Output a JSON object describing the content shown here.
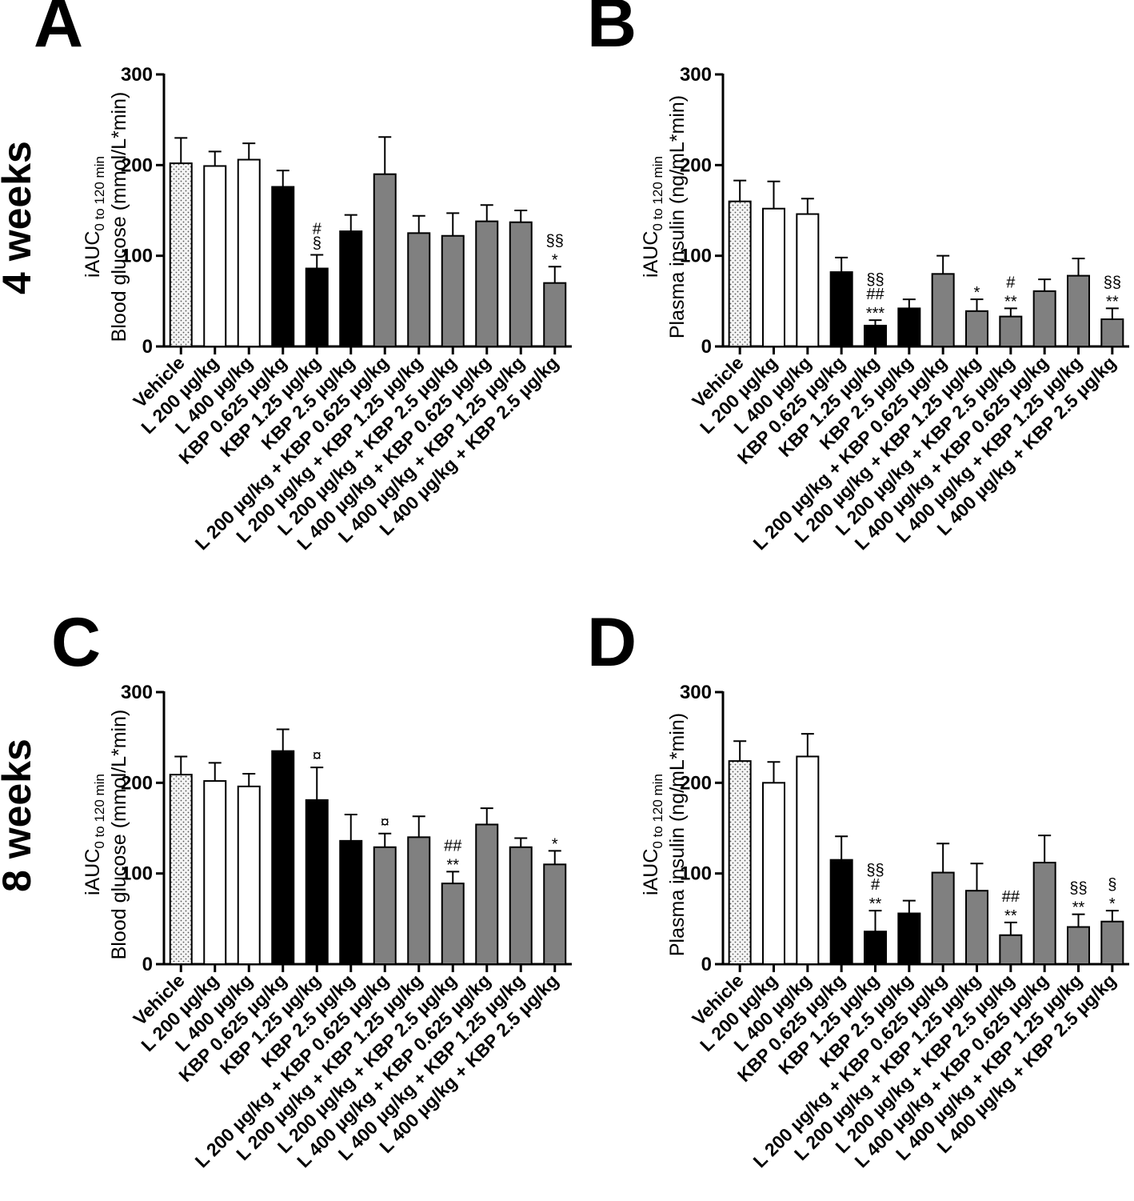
{
  "row_labels": [
    "4 weeks",
    "8 weeks"
  ],
  "colors": {
    "open": "#ffffff",
    "black": "#000000",
    "gray": "#808080",
    "vehicle": "#f2f2f2"
  },
  "chart_data": [
    {
      "type": "bar",
      "panel": "A",
      "ylabel_main": "iAUC",
      "ylabel_sub": "0 to 120 min",
      "ylabel_unit": "Blood glucose (mmol/L*min)",
      "ylim": [
        0,
        300
      ],
      "yticks": [
        "0",
        "100",
        "200",
        "300"
      ],
      "categories": [
        "Vehicle",
        "L 200 µg/kg",
        "L 400 µg/kg",
        "KBP 0.625 µg/kg",
        "KBP 1.25 µg/kg",
        "KBP 2.5 µg/kg",
        "L 200 µg/kg + KBP 0.625 µg/kg",
        "L 200 µg/kg + KBP 1.25 µg/kg",
        "L 200 µg/kg + KBP 2.5 µg/kg",
        "L 400 µg/kg + KBP 0.625 µg/kg",
        "L 400 µg/kg + KBP 1.25 µg/kg",
        "L 400 µg/kg + KBP 2.5 µg/kg"
      ],
      "fills": [
        "vehicle",
        "open",
        "open",
        "black",
        "black",
        "black",
        "gray",
        "gray",
        "gray",
        "gray",
        "gray",
        "gray"
      ],
      "values": [
        202,
        199,
        206,
        176,
        86,
        127,
        190,
        125,
        122,
        138,
        137,
        70
      ],
      "errors": [
        28,
        16,
        18,
        18,
        15,
        18,
        41,
        19,
        25,
        18,
        13,
        18
      ],
      "annotations": [
        "",
        "",
        "",
        "",
        "#\n§",
        "",
        "",
        "",
        "",
        "",
        "",
        "§§\n*"
      ]
    },
    {
      "type": "bar",
      "panel": "B",
      "ylabel_main": "iAUC",
      "ylabel_sub": "0 to 120 min",
      "ylabel_unit": "Plasma insulin (ng/mL*min)",
      "ylim": [
        0,
        300
      ],
      "yticks": [
        "0",
        "100",
        "200",
        "300"
      ],
      "categories": [
        "Vehicle",
        "L 200 µg/kg",
        "L 400 µg/kg",
        "KBP 0.625 µg/kg",
        "KBP 1.25 µg/kg",
        "KBP 2.5 µg/kg",
        "L 200 µg/kg + KBP 0.625 µg/kg",
        "L 200 µg/kg + KBP 1.25 µg/kg",
        "L 200 µg/kg + KBP 2.5 µg/kg",
        "L 400 µg/kg + KBP 0.625 µg/kg",
        "L 400 µg/kg + KBP 1.25 µg/kg",
        "L 400 µg/kg + KBP 2.5 µg/kg"
      ],
      "fills": [
        "vehicle",
        "open",
        "open",
        "black",
        "black",
        "black",
        "gray",
        "gray",
        "gray",
        "gray",
        "gray",
        "gray"
      ],
      "values": [
        160,
        152,
        146,
        82,
        23,
        42,
        80,
        39,
        33,
        61,
        78,
        30
      ],
      "errors": [
        23,
        30,
        17,
        16,
        6,
        10,
        20,
        13,
        9,
        13,
        19,
        12
      ],
      "annotations": [
        "",
        "",
        "",
        "",
        "§§\n##\n***",
        "",
        "",
        "*",
        "#\n**",
        "",
        "",
        "§§\n**"
      ]
    },
    {
      "type": "bar",
      "panel": "C",
      "ylabel_main": "iAUC",
      "ylabel_sub": "0 to 120 min",
      "ylabel_unit": "Blood glucose (mmol/L*min)",
      "ylim": [
        0,
        300
      ],
      "yticks": [
        "0",
        "100",
        "200",
        "300"
      ],
      "categories": [
        "Vehicle",
        "L 200 µg/kg",
        "L 400 µg/kg",
        "KBP 0.625 µg/kg",
        "KBP 1.25 µg/kg",
        "KBP 2.5 µg/kg",
        "L 200 µg/kg + KBP 0.625 µg/kg",
        "L 200 µg/kg + KBP 1.25 µg/kg",
        "L 200 µg/kg + KBP 2.5 µg/kg",
        "L 400 µg/kg + KBP 0.625 µg/kg",
        "L 400 µg/kg + KBP 1.25 µg/kg",
        "L 400 µg/kg + KBP 2.5 µg/kg"
      ],
      "fills": [
        "vehicle",
        "open",
        "open",
        "black",
        "black",
        "black",
        "gray",
        "gray",
        "gray",
        "gray",
        "gray",
        "gray"
      ],
      "values": [
        209,
        202,
        196,
        235,
        181,
        136,
        129,
        140,
        89,
        154,
        129,
        110
      ],
      "errors": [
        20,
        20,
        14,
        24,
        36,
        29,
        15,
        23,
        13,
        18,
        10,
        15
      ],
      "annotations": [
        "",
        "",
        "",
        "",
        "¤",
        "",
        "¤",
        "",
        "##\n**",
        "",
        "",
        "*"
      ]
    },
    {
      "type": "bar",
      "panel": "D",
      "ylabel_main": "iAUC",
      "ylabel_sub": "0 to 120 min",
      "ylabel_unit": "Plasma insulin (ng/mL*min)",
      "ylim": [
        0,
        300
      ],
      "yticks": [
        "0",
        "100",
        "200",
        "300"
      ],
      "categories": [
        "Vehicle",
        "L 200 µg/kg",
        "L 400 µg/kg",
        "KBP 0.625 µg/kg",
        "KBP 1.25 µg/kg",
        "KBP 2.5 µg/kg",
        "L 200 µg/kg + KBP 0.625 µg/kg",
        "L 200 µg/kg + KBP 1.25 µg/kg",
        "L 200 µg/kg + KBP 2.5 µg/kg",
        "L 400 µg/kg + KBP 0.625 µg/kg",
        "L 400 µg/kg + KBP 1.25 µg/kg",
        "L 400 µg/kg + KBP 2.5 µg/kg"
      ],
      "fills": [
        "vehicle",
        "open",
        "open",
        "black",
        "black",
        "black",
        "gray",
        "gray",
        "gray",
        "gray",
        "gray",
        "gray"
      ],
      "values": [
        224,
        200,
        229,
        115,
        36,
        56,
        101,
        81,
        32,
        112,
        41,
        47
      ],
      "errors": [
        22,
        23,
        25,
        26,
        23,
        14,
        32,
        30,
        14,
        30,
        14,
        12
      ],
      "annotations": [
        "",
        "",
        "",
        "",
        "§§\n#\n**",
        "",
        "",
        "",
        "##\n**",
        "",
        "§§\n**",
        "§\n*"
      ]
    }
  ]
}
